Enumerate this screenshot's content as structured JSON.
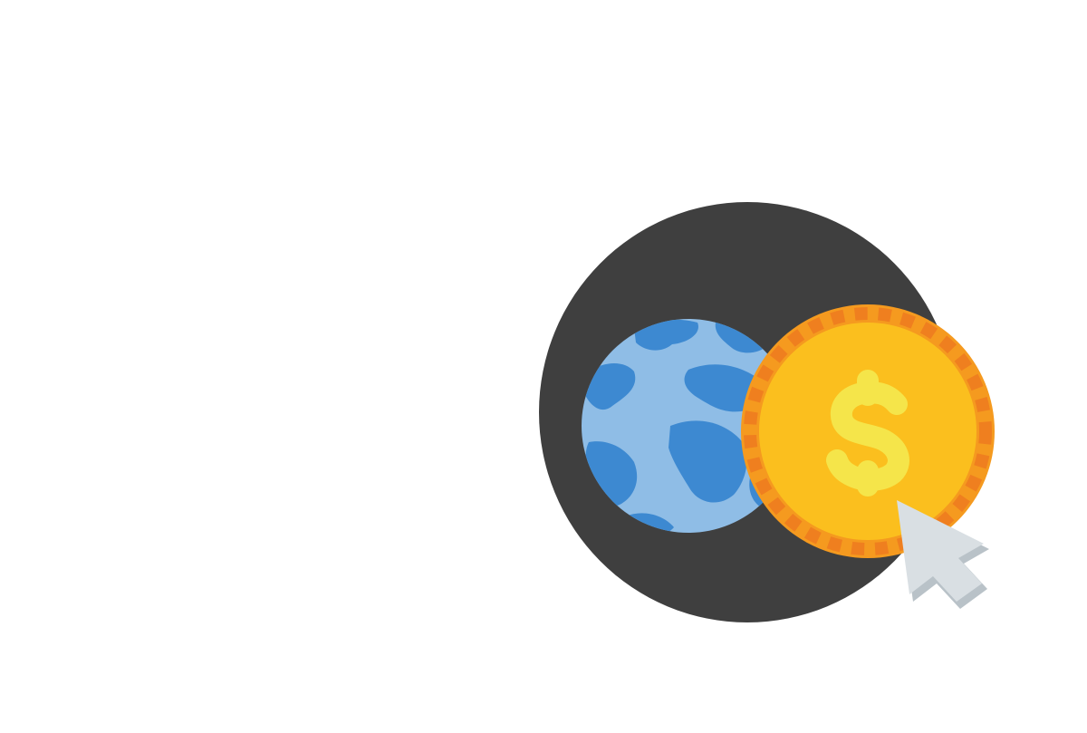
{
  "illustration": {
    "name": "global-payment-icon",
    "icons": [
      "globe-icon",
      "dollar-coin-icon",
      "cursor-arrow-icon"
    ],
    "symbol": "$",
    "colors": {
      "backdrop": "#3f3f3f",
      "ocean": "#8fbde6",
      "land": "#3d89d1",
      "coin_face": "#fbbf1e",
      "coin_rim": "#f59a1f",
      "coin_rim_dash": "#ef7f1f",
      "dollar_sign": "#f5e54a",
      "cursor": "#d9dfe3",
      "cursor_shadow": "#b9c2c8"
    }
  }
}
